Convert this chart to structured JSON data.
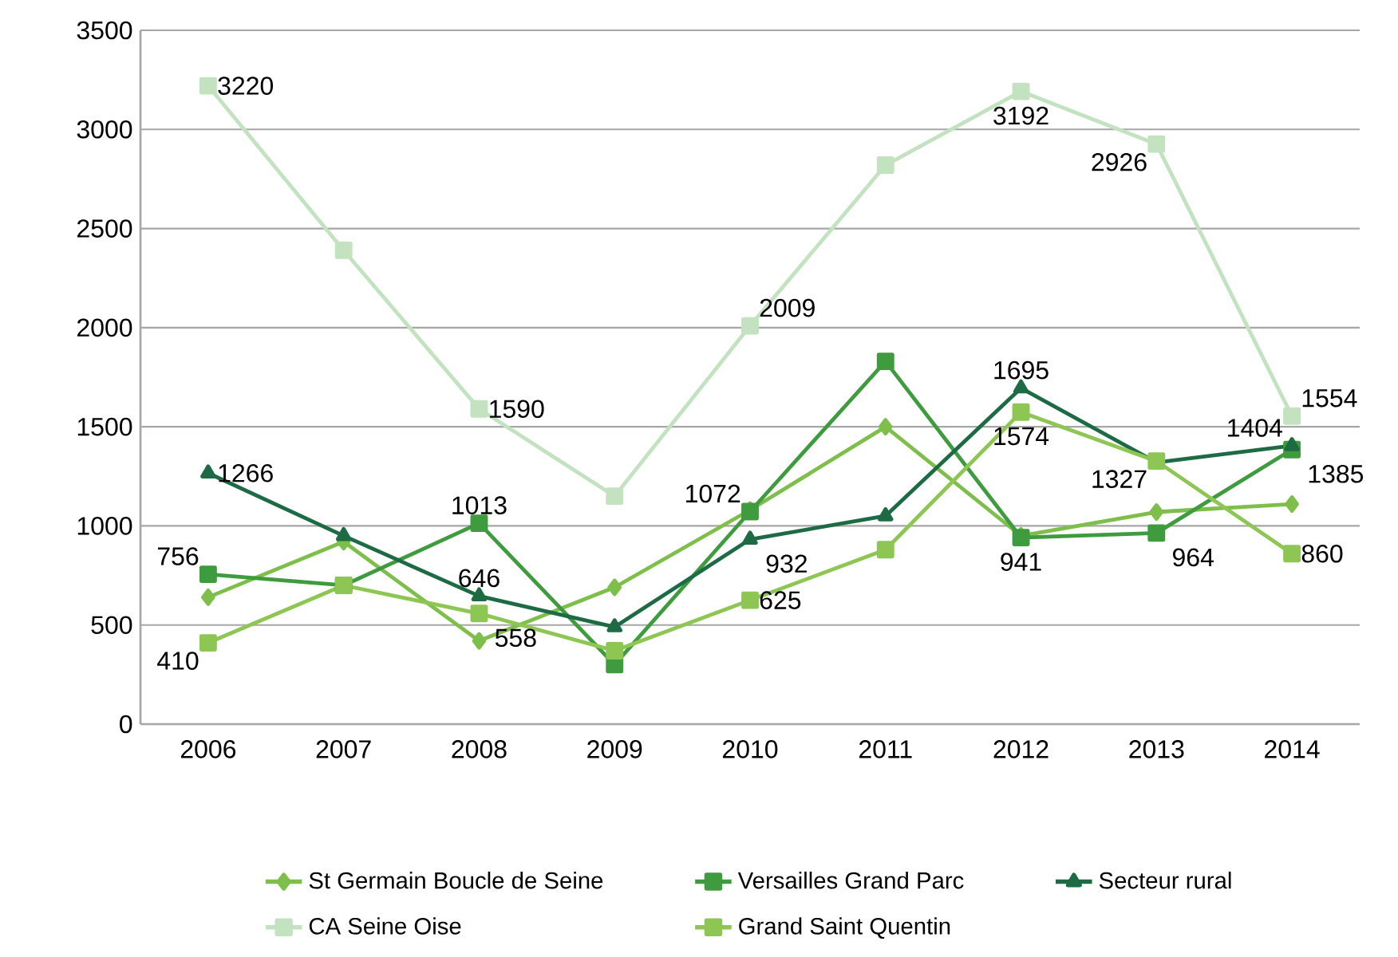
{
  "chart_data": {
    "type": "line",
    "categories": [
      "2006",
      "2007",
      "2008",
      "2009",
      "2010",
      "2011",
      "2012",
      "2013",
      "2014"
    ],
    "series": [
      {
        "name": "St Germain Boucle de Seine",
        "color": "#7dbf4a",
        "marker": "diamond",
        "values": [
          640,
          920,
          420,
          690,
          1080,
          1500,
          950,
          1070,
          1110
        ]
      },
      {
        "name": "Versailles Grand Parc",
        "color": "#3e9b3e",
        "marker": "square",
        "values": [
          756,
          700,
          1013,
          300,
          1072,
          1830,
          941,
          964,
          1385
        ],
        "value_labels": [
          "756",
          null,
          "1013",
          null,
          "1072",
          null,
          "941",
          "964",
          "1385"
        ]
      },
      {
        "name": "Secteur rural",
        "color": "#1d6b45",
        "marker": "triangle",
        "values": [
          1266,
          950,
          646,
          490,
          932,
          1050,
          1695,
          1320,
          1404
        ],
        "value_labels": [
          "1266",
          null,
          "646",
          null,
          "932",
          null,
          "1695",
          null,
          "1404"
        ]
      },
      {
        "name": "CA Seine Oise",
        "color": "#c3e2c0",
        "marker": "square",
        "values": [
          3220,
          2390,
          1590,
          1150,
          2009,
          2820,
          3192,
          2926,
          1554
        ],
        "value_labels": [
          "3220",
          null,
          "1590",
          null,
          "2009",
          null,
          "3192",
          "2926",
          "1554"
        ]
      },
      {
        "name": "Grand Saint Quentin",
        "color": "#8dc653",
        "marker": "square",
        "values": [
          410,
          700,
          558,
          370,
          625,
          880,
          1574,
          1327,
          860
        ],
        "value_labels": [
          "410",
          null,
          "558",
          null,
          "625",
          null,
          "1574",
          "1327",
          "860"
        ]
      }
    ],
    "ylim": [
      0,
      3500
    ],
    "yticks": [
      0,
      500,
      1000,
      1500,
      2000,
      2500,
      3000,
      3500
    ],
    "grid": "y",
    "legend": "bottom",
    "line_style": "solid"
  }
}
